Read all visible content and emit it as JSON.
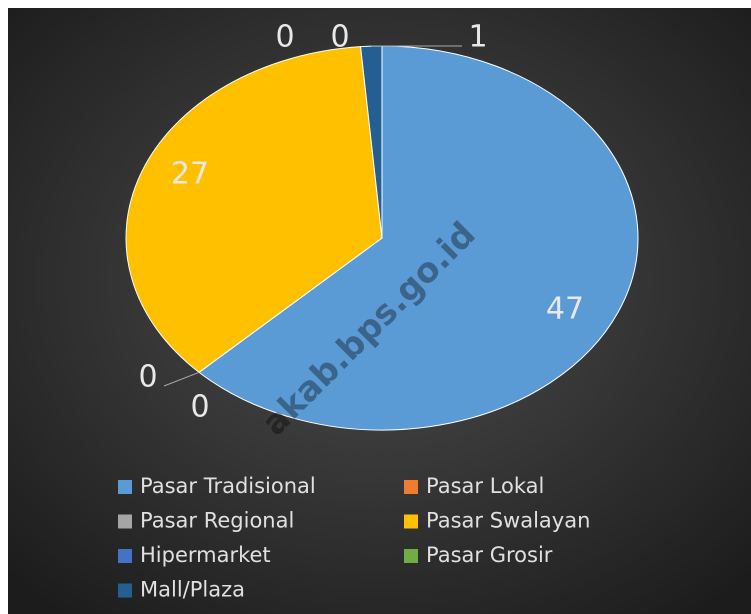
{
  "chart_data": {
    "type": "pie",
    "categories": [
      "Pasar Tradisional",
      "Pasar Lokal",
      "Pasar Regional",
      "Pasar Swalayan",
      "Hipermarket",
      "Pasar Grosir",
      "Mall/Plaza"
    ],
    "values": [
      47,
      0,
      0,
      27,
      0,
      0,
      1
    ],
    "colors": [
      "#5b9bd5",
      "#ed7d31",
      "#a5a5a5",
      "#ffc000",
      "#4472c4",
      "#70ad47",
      "#255e91"
    ],
    "watermark": "akab.bps.go.id"
  }
}
